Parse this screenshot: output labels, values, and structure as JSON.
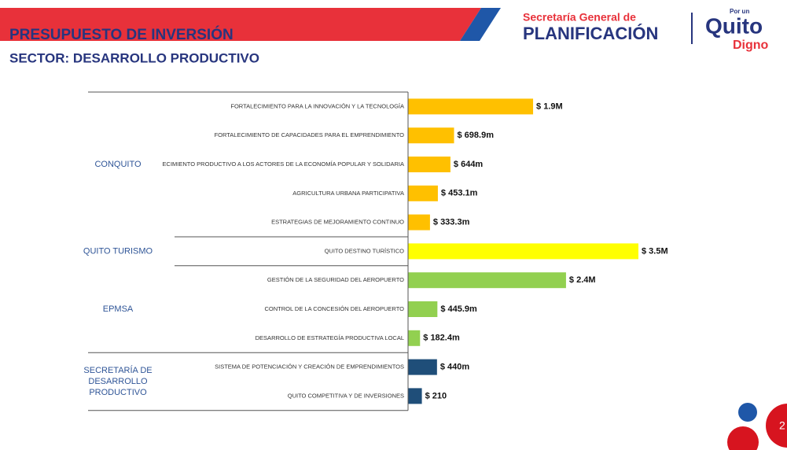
{
  "header": {
    "title": "PRESUPUESTO DE INVERSIÓN",
    "subtitle": "SECTOR: DESARROLLO PRODUCTIVO",
    "logo_line1": "Secretaría General de",
    "logo_line2": "PLANIFICACIÓN",
    "logo_small": "Por un",
    "logo_big": "Quito",
    "logo_sub": "Digno"
  },
  "page_number": "2",
  "chart_data": {
    "type": "bar",
    "orientation": "horizontal",
    "groups": [
      {
        "name": "CONQUITO",
        "color": "#ffc000",
        "categories": [
          "FORTALECIMIENTO PARA LA INNOVACIÓN Y LA TECNOLOGÍA",
          "FORTALECIMIENTO DE CAPACIDADES PARA EL EMPRENDIMIENTO",
          "ECIMIENTO PRODUCTIVO A LOS ACTORES DE LA ECONOMÍA POPULAR Y SOLIDARIA",
          "AGRICULTURA URBANA PARTICIPATIVA",
          "ESTRATEGIAS DE MEJORAMIENTO CONTINUO"
        ],
        "values": [
          1900,
          698.9,
          644,
          453.1,
          333.3
        ],
        "value_labels": [
          "$ 1.9M",
          "$ 698.9m",
          "$ 644m",
          "$ 453.1m",
          "$ 333.3m"
        ]
      },
      {
        "name": "QUITO  TURISMO",
        "color": "#ffff00",
        "categories": [
          "QUITO DESTINO TURÍSTICO"
        ],
        "values": [
          3500
        ],
        "value_labels": [
          "$ 3.5M"
        ]
      },
      {
        "name": "EPMSA",
        "color": "#92d050",
        "categories": [
          "GESTIÓN DE LA SEGURIDAD DEL AEROPUERTO",
          "CONTROL DE LA CONCESIÓN DEL AEROPUERTO",
          "DESARROLLO DE ESTRATEGÍA PRODUCTIVA LOCAL"
        ],
        "values": [
          2400,
          445.9,
          182.4
        ],
        "value_labels": [
          "$ 2.4M",
          "$ 445.9m",
          "$ 182.4m"
        ]
      },
      {
        "name": "SECRETARÍA  DE DESARROLLO PRODUCTIVO",
        "color": "#1f4e79",
        "categories": [
          "SISTEMA DE POTENCIACIÓN Y CREACIÓN DE EMPRENDIMIENTOS",
          "QUITO COMPETITIVA Y DE INVERSIONES"
        ],
        "values": [
          440,
          210
        ],
        "value_labels": [
          "$ 440m",
          "$ 210"
        ]
      }
    ]
  }
}
